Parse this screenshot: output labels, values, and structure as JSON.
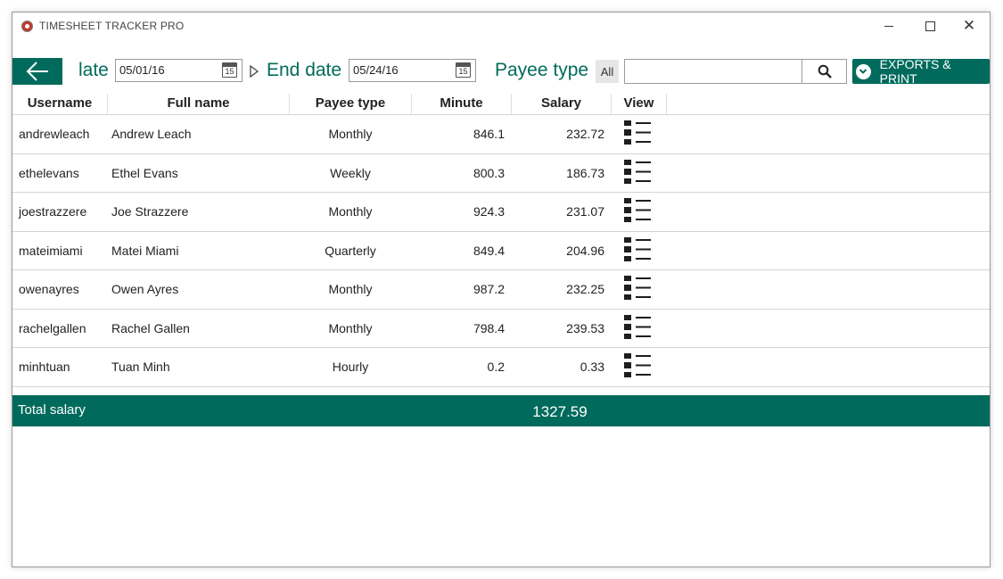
{
  "window": {
    "title": "TIMESHEET TRACKER PRO"
  },
  "toolbar": {
    "start_label": "late",
    "start_date": "05/01/16",
    "calendar_day": "15",
    "end_label": "End date",
    "end_date": "05/24/16",
    "payee_label": "Payee type",
    "payee_value": "All",
    "search_value": "",
    "export_label": "EXPORTS & PRINT"
  },
  "table": {
    "columns": [
      "Username",
      "Full name",
      "Payee type",
      "Minute",
      "Salary",
      "View"
    ],
    "rows": [
      {
        "username": "andrewleach",
        "full_name": "Andrew Leach",
        "payee_type": "Monthly",
        "minute": "846.1",
        "salary": "232.72"
      },
      {
        "username": "ethelevans",
        "full_name": "Ethel Evans",
        "payee_type": "Weekly",
        "minute": "800.3",
        "salary": "186.73"
      },
      {
        "username": "joestrazzere",
        "full_name": "Joe Strazzere",
        "payee_type": "Monthly",
        "minute": "924.3",
        "salary": "231.07"
      },
      {
        "username": "mateimiami",
        "full_name": "Matei Miami",
        "payee_type": "Quarterly",
        "minute": "849.4",
        "salary": "204.96"
      },
      {
        "username": "owenayres",
        "full_name": "Owen Ayres",
        "payee_type": "Monthly",
        "minute": "987.2",
        "salary": "232.25"
      },
      {
        "username": "rachelgallen",
        "full_name": "Rachel Gallen",
        "payee_type": "Monthly",
        "minute": "798.4",
        "salary": "239.53"
      },
      {
        "username": "minhtuan",
        "full_name": "Tuan Minh",
        "payee_type": "Hourly",
        "minute": "0.2",
        "salary": "0.33"
      }
    ]
  },
  "total": {
    "label": "Total salary",
    "value": "1327.59"
  },
  "colors": {
    "accent": "#006b5c"
  },
  "icons": {
    "back": "arrow-left-icon",
    "calendar": "calendar-icon",
    "search": "search-icon",
    "export": "chevron-down-circle-icon",
    "view": "list-icon"
  }
}
